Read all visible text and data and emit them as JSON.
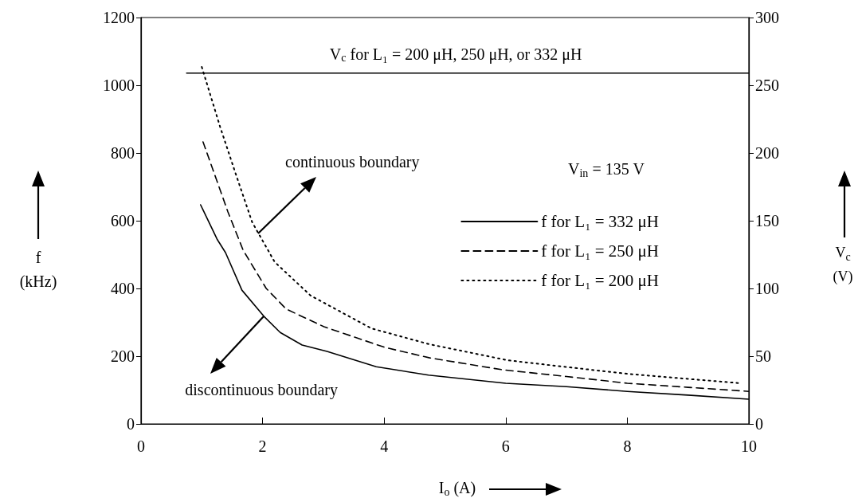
{
  "chart_data": {
    "type": "line",
    "xlabel": "I$_{o}$ (A)",
    "ylabel": "f\n(kHz)",
    "y2label": "V$_{c}$\n(V)",
    "xlim": [
      0,
      10
    ],
    "xticks": [
      0,
      2,
      4,
      6,
      8,
      10
    ],
    "ylim": [
      0,
      1200
    ],
    "yticks": [
      0,
      200,
      400,
      600,
      800,
      1000,
      1200
    ],
    "y2lim": [
      0,
      300
    ],
    "y2ticks": [
      0,
      50,
      100,
      150,
      200,
      250,
      300
    ],
    "grid": false,
    "legend": "right",
    "marker": "none",
    "series": [
      {
        "name": "f for L₁ = 332 μH",
        "color": "#000000",
        "line_style": "solid",
        "x": [
          0.98,
          1.25,
          1.39,
          1.66,
          2.02,
          2.29,
          2.65,
          3.06,
          3.87,
          4.73,
          6,
          7,
          8,
          9,
          10
        ],
        "values": [
          647,
          546,
          506,
          395,
          318,
          270,
          233,
          214,
          169,
          144,
          120,
          110,
          96,
          85,
          73
        ]
      },
      {
        "name": "f for L₁ = 250 μH",
        "color": "#000000",
        "line_style": "dashed",
        "x": [
          1.02,
          1.43,
          1.68,
          2.06,
          2.39,
          3.01,
          4.01,
          4.75,
          5.94,
          7,
          8,
          9,
          10
        ],
        "values": [
          833,
          626,
          513,
          400,
          339,
          287,
          226,
          195,
          160,
          140,
          120,
          108,
          96
        ]
      },
      {
        "name": "f for L₁ = 200 μH",
        "color": "#000000",
        "line_style": "dotted",
        "x": [
          1,
          1.3,
          1.57,
          1.83,
          2.2,
          2.79,
          3.79,
          4.75,
          6.03,
          7,
          8,
          9,
          9.87
        ],
        "values": [
          1054,
          878,
          732,
          595,
          478,
          379,
          282,
          235,
          188,
          168,
          148,
          133,
          120
        ]
      },
      {
        "name": "V$_{c}$ for L₁ = 200 μH, 250 μH, or 332 μH",
        "color": "#000000",
        "line_style": "solid",
        "axis": "y2",
        "x": [
          0.75,
          10
        ],
        "values": [
          259,
          259
        ]
      }
    ],
    "annotations": [
      {
        "text": "continuous boundary",
        "x": 1.93,
        "y": 563
      },
      {
        "text": "discontinuous boundary",
        "x": 2.02,
        "y": 318
      },
      "V$_{in}$ = 135 V"
    ]
  }
}
